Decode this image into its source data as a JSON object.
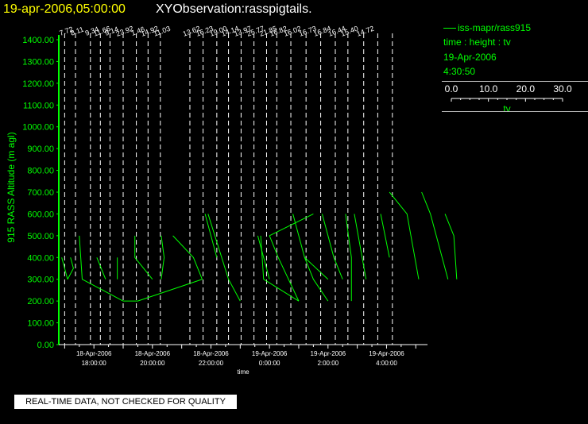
{
  "header": {
    "date_time": "19-apr-2006,05:00:00",
    "observation": "XYObservation:rasspigtails."
  },
  "legend": {
    "series_label": "iss-mapr/rass915",
    "axes_desc": "time : height : tv",
    "date": "19-Apr-2006",
    "time": "4:30:50",
    "scale_ticks": [
      "0.0",
      "10.0",
      "20.0",
      "30.0"
    ],
    "scale_label": "tv"
  },
  "notice": "REAL-TIME DATA, NOT CHECKED FOR QUALITY",
  "colors": {
    "background": "#000000",
    "series": "#00ff00",
    "axes": "#ffffff",
    "title_date": "#ffff00"
  },
  "chart_data": {
    "type": "line",
    "ylabel": "915 RASS Altitude (m agl)",
    "xlabel": "time",
    "ylim": [
      0,
      1400
    ],
    "y_ticks": [
      "0.00",
      "100.00",
      "200.00",
      "300.00",
      "400.00",
      "500.00",
      "600.00",
      "700.00",
      "800.00",
      "900.00",
      "1000.00",
      "1100.00",
      "1200.00",
      "1300.00",
      "1400.00"
    ],
    "xlim_hours": [
      16.8,
      5.4
    ],
    "x_ticks": [
      {
        "hour": 18,
        "date": "18-Apr-2006",
        "time": "18:00:00"
      },
      {
        "hour": 20,
        "date": "18-Apr-2006",
        "time": "20:00:00"
      },
      {
        "hour": 22,
        "date": "18-Apr-2006",
        "time": "22:00:00"
      },
      {
        "hour": 0,
        "date": "19-Apr-2006",
        "time": "0:00:00"
      },
      {
        "hour": 2,
        "date": "19-Apr-2006",
        "time": "2:00:00"
      },
      {
        "hour": 4,
        "date": "19-Apr-2006",
        "time": "4:00:00"
      }
    ],
    "scale_range": [
      0,
      30
    ],
    "profiles": [
      {
        "hour": 17.0,
        "value": "7.72",
        "points": [
          [
            16.9,
            400
          ],
          [
            17.1,
            300
          ]
        ]
      },
      {
        "hour": 17.37,
        "value": "8.11",
        "points": [
          [
            17.2,
            400
          ],
          [
            17.3,
            350
          ],
          [
            17.1,
            300
          ]
        ]
      },
      {
        "hour": 17.88,
        "value": "9.34",
        "points": [
          [
            17.5,
            500
          ],
          [
            17.6,
            300
          ],
          [
            19.0,
            200
          ]
        ]
      },
      {
        "hour": 18.22,
        "value": "11.66",
        "points": [
          [
            18.1,
            400
          ],
          [
            18.4,
            300
          ]
        ]
      },
      {
        "hour": 18.55,
        "value": "9.14",
        "points": [
          [
            18.8,
            400
          ],
          [
            18.8,
            300
          ]
        ]
      },
      {
        "hour": 19.0,
        "value": "23.92",
        "points": [
          [
            19.0,
            200
          ],
          [
            19.5,
            200
          ]
        ]
      },
      {
        "hour": 19.45,
        "value": "1.46",
        "points": [
          [
            19.4,
            500
          ],
          [
            19.4,
            400
          ],
          [
            20.0,
            300
          ]
        ]
      },
      {
        "hour": 19.85,
        "value": "14.92",
        "points": [
          [
            19.5,
            200
          ],
          [
            21.7,
            300
          ]
        ]
      },
      {
        "hour": 20.27,
        "value": "11.03",
        "points": [
          [
            20.3,
            500
          ],
          [
            20.4,
            400
          ],
          [
            20.3,
            300
          ]
        ]
      },
      {
        "hour": 21.28,
        "value": "13.62",
        "points": [
          [
            20.7,
            500
          ],
          [
            21.4,
            400
          ],
          [
            21.7,
            300
          ]
        ]
      },
      {
        "hour": 21.73,
        "value": "16.23",
        "points": [
          [
            21.8,
            600
          ],
          [
            22.0,
            500
          ],
          [
            22.2,
            400
          ]
        ]
      },
      {
        "hour": 22.2,
        "value": "19.00",
        "points": [
          [
            21.9,
            600
          ],
          [
            22.6,
            300
          ],
          [
            23.0,
            200
          ]
        ]
      },
      {
        "hour": 22.6,
        "value": "14.14",
        "points": [
          [
            23.6,
            500
          ],
          [
            23.8,
            400
          ],
          [
            24.0,
            300
          ]
        ]
      },
      {
        "hour": 23.03,
        "value": "13.97",
        "points": [
          [
            23.7,
            500
          ],
          [
            23.8,
            300
          ],
          [
            25.0,
            200
          ]
        ]
      },
      {
        "hour": 23.47,
        "value": "25.77",
        "points": [
          [
            24.0,
            500
          ],
          [
            24.3,
            400
          ],
          [
            25.0,
            200
          ]
        ]
      },
      {
        "hour": 23.9,
        "value": "21.85",
        "points": [
          [
            24.0,
            500
          ],
          [
            25.5,
            600
          ]
        ]
      },
      {
        "hour": 24.25,
        "value": "16.82",
        "points": [
          [
            24.8,
            600
          ],
          [
            25.2,
            400
          ],
          [
            26.0,
            300
          ]
        ]
      },
      {
        "hour": 24.73,
        "value": "16.02",
        "points": [
          [
            25.2,
            400
          ],
          [
            25.5,
            300
          ],
          [
            26.0,
            200
          ]
        ]
      },
      {
        "hour": 25.25,
        "value": "16.73",
        "points": [
          [
            25.8,
            600
          ],
          [
            26.2,
            400
          ],
          [
            26.5,
            300
          ]
        ]
      },
      {
        "hour": 25.75,
        "value": "16.84",
        "points": [
          [
            26.6,
            600
          ],
          [
            26.8,
            400
          ],
          [
            26.8,
            200
          ]
        ]
      },
      {
        "hour": 26.25,
        "value": "16.44",
        "points": [
          [
            26.9,
            600
          ],
          [
            27.3,
            300
          ]
        ]
      },
      {
        "hour": 26.68,
        "value": "15.40",
        "points": [
          [
            27.8,
            600
          ],
          [
            28.1,
            400
          ]
        ]
      },
      {
        "hour": 27.22,
        "value": "14.72",
        "points": [
          [
            28.1,
            700
          ],
          [
            28.7,
            600
          ],
          [
            29.1,
            300
          ]
        ]
      },
      {
        "hour": 27.7,
        "value": "",
        "points": [
          [
            29.2,
            700
          ],
          [
            29.5,
            600
          ],
          [
            30.1,
            300
          ]
        ]
      },
      {
        "hour": 28.2,
        "value": "",
        "points": [
          [
            30.0,
            600
          ],
          [
            30.3,
            500
          ],
          [
            30.4,
            300
          ]
        ]
      }
    ]
  }
}
